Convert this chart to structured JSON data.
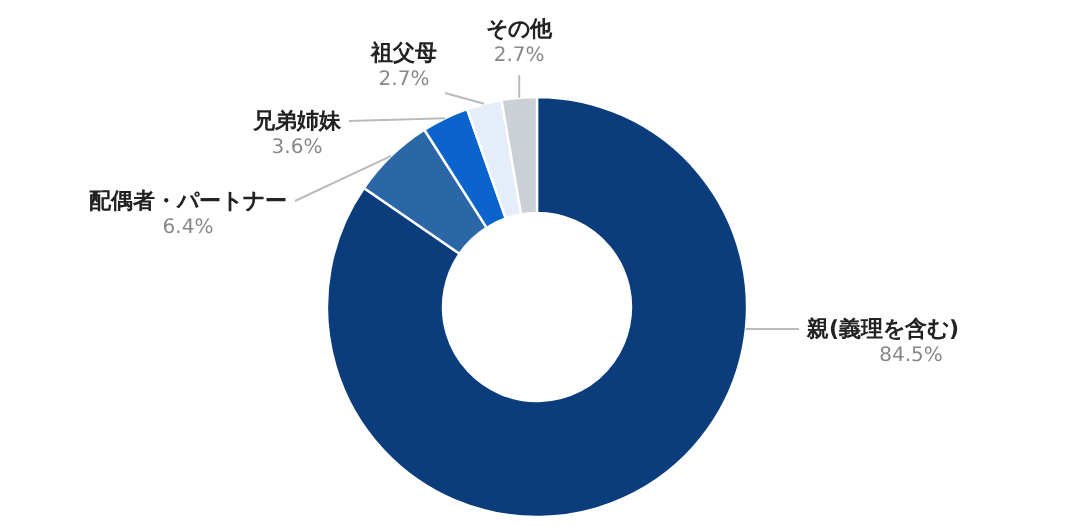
{
  "chart_data": {
    "type": "donut",
    "categories": [
      "親(義理を含む)",
      "配偶者・パートナー",
      "兄弟姉妹",
      "祖父母",
      "その他"
    ],
    "values": [
      84.5,
      6.4,
      3.6,
      2.7,
      2.7
    ],
    "colors": [
      "#0b3d7d",
      "#2b67a6",
      "#0b63cc",
      "#e4edf8",
      "#cbd0d6"
    ],
    "value_labels": [
      "84.5%",
      "6.4%",
      "3.6%",
      "2.7%",
      "2.7%"
    ]
  }
}
